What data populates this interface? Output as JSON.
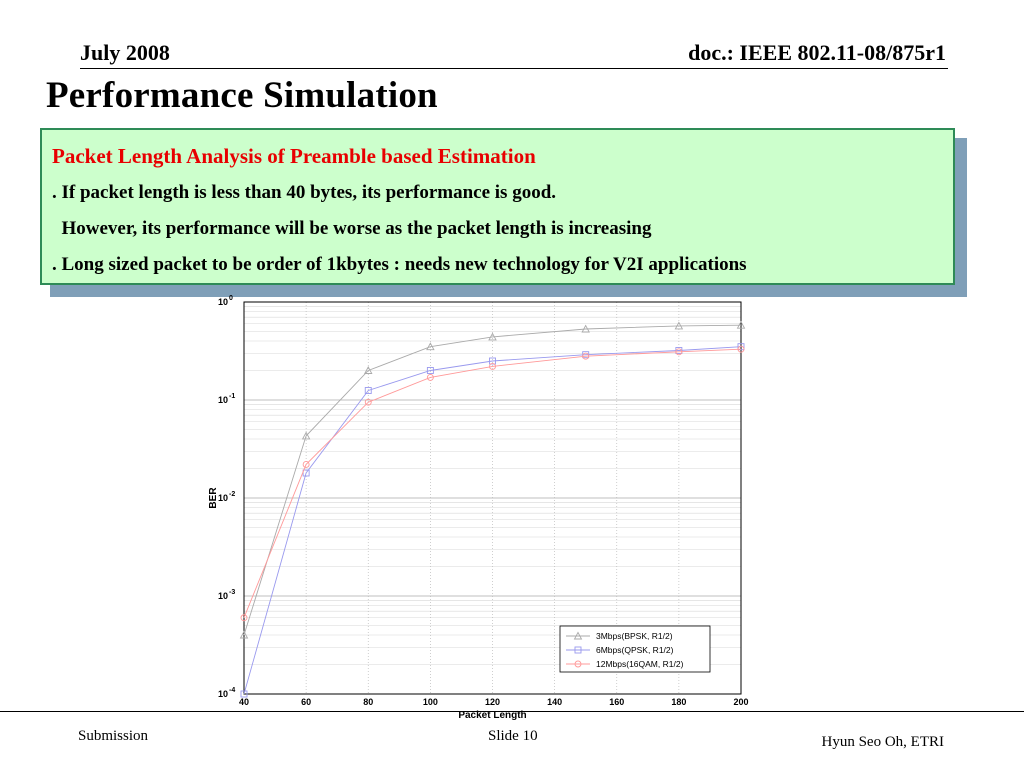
{
  "header": {
    "date": "July 2008",
    "doc": "doc.: IEEE 802.11-08/875r1"
  },
  "slide": {
    "title": "Performance Simulation"
  },
  "box": {
    "heading": "Packet Length Analysis of Preamble based Estimation",
    "lines": [
      ". If packet length is less than 40 bytes, its performance is good.",
      "  However, its performance will be worse as the packet length is increasing",
      ". Long sized packet to be order of 1kbytes : needs new technology for V2I applications"
    ],
    "colors": {
      "heading": "#e80000",
      "background": "#ccffcc",
      "border": "#2e8b57"
    }
  },
  "chart_data": {
    "type": "line",
    "xlabel": "Packet Length",
    "ylabel": "BER",
    "xlim": [
      40,
      200
    ],
    "ylim": [
      0.0001,
      1
    ],
    "yscale": "log",
    "x_ticks": [
      40,
      60,
      80,
      100,
      120,
      140,
      160,
      180,
      200
    ],
    "y_ticks": [
      0.0001,
      0.001,
      0.01,
      0.1,
      1
    ],
    "y_tick_labels": [
      {
        "base": "10",
        "exp": "-4"
      },
      {
        "base": "10",
        "exp": "-3"
      },
      {
        "base": "10",
        "exp": "-2"
      },
      {
        "base": "10",
        "exp": "-1"
      },
      {
        "base": "10",
        "exp": "0"
      }
    ],
    "grid": true,
    "legend_position": "bottom-right",
    "series": [
      {
        "name": "3Mbps(BPSK, R1/2)",
        "marker": "triangle",
        "color": "#aaaaaa",
        "x": [
          40,
          60,
          80,
          100,
          120,
          150,
          180,
          200
        ],
        "y": [
          0.0004,
          0.043,
          0.2,
          0.35,
          0.44,
          0.53,
          0.57,
          0.58
        ]
      },
      {
        "name": "6Mbps(QPSK, R1/2)",
        "marker": "square",
        "color": "#9999ee",
        "x": [
          40,
          60,
          80,
          100,
          120,
          150,
          180,
          200
        ],
        "y": [
          0.0001,
          0.018,
          0.125,
          0.2,
          0.25,
          0.29,
          0.32,
          0.35
        ]
      },
      {
        "name": "12Mbps(16QAM, R1/2)",
        "marker": "circle",
        "color": "#ff9999",
        "x": [
          40,
          60,
          80,
          100,
          120,
          150,
          180,
          200
        ],
        "y": [
          0.0006,
          0.022,
          0.095,
          0.17,
          0.22,
          0.28,
          0.31,
          0.33
        ]
      }
    ]
  },
  "footer": {
    "left": "Submission",
    "center": "Slide 10",
    "right": "Hyun Seo Oh, ETRI"
  }
}
